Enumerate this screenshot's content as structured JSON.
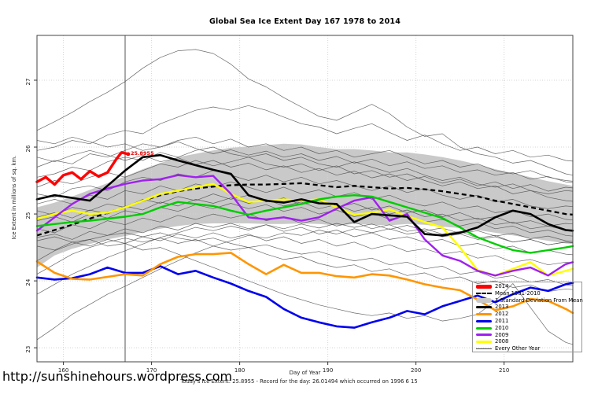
{
  "page": {
    "title": "Global Sea Ice Extent Day 167 1978 to 2014",
    "y_axis_label": "Ice Extent in millions of sq. km.",
    "x_axis_label": "Day of Year",
    "subtitle": "Today's Ice Extent: 25.8955  - Record for the day: 26.01494 which occurred on 1996 6 15",
    "url_text": "http://sunshinehours.wordpress.com",
    "annotation": "25.8955"
  },
  "legend": {
    "items": [
      {
        "label": "2014",
        "color": "#ff0000",
        "swatch": "thick-xl"
      },
      {
        "label": "Mean 1981-2010",
        "color": "#000000",
        "swatch": "dashed"
      },
      {
        "label": "1 Standard Deviation From Mean",
        "color": "#c9c9c9",
        "swatch": "band"
      },
      {
        "label": "2013",
        "color": "#000000",
        "swatch": "thick"
      },
      {
        "label": "2012",
        "color": "#ff9500",
        "swatch": "thick"
      },
      {
        "label": "2011",
        "color": "#0000ee",
        "swatch": "thick"
      },
      {
        "label": "2010",
        "color": "#00cc00",
        "swatch": "thick"
      },
      {
        "label": "2009",
        "color": "#a020f0",
        "swatch": "thick"
      },
      {
        "label": "2008",
        "color": "#ffff00",
        "swatch": "thick"
      },
      {
        "label": "Every Other Year",
        "color": "#4a4a4a",
        "swatch": "thin"
      }
    ]
  },
  "chart_data": {
    "type": "line",
    "title": "Global Sea Ice Extent Day 167 1978 to 2014",
    "xlabel": "Day of Year",
    "ylabel": "Ice Extent in millions of sq. km.",
    "xlim": [
      157,
      217.8
    ],
    "ylim": [
      22.79,
      27.67
    ],
    "xticks": [
      160,
      170,
      180,
      190,
      200,
      210
    ],
    "yticks": [
      23,
      24,
      25,
      26,
      27
    ],
    "grid": true,
    "legend_position": "bottom-right",
    "marker_day": 167,
    "today_extent": 25.8955,
    "record_value": 26.01494,
    "record_date": "1996 6 15",
    "grid_color": "#d4d4d4",
    "border_color": "#444444",
    "marker_color": "#555555",
    "other_color": "#4d4d4d",
    "x": [
      157,
      159,
      161,
      163,
      165,
      167,
      169,
      171,
      173,
      175,
      177,
      179,
      181,
      183,
      185,
      187,
      189,
      191,
      193,
      195,
      197,
      199,
      201,
      203,
      205,
      207,
      209,
      211,
      213,
      215,
      217,
      217.8
    ],
    "band": {
      "name": "1 Standard Deviation From Mean",
      "color": "#c9c9c9",
      "upper": [
        25.1,
        25.17,
        25.26,
        25.36,
        25.46,
        25.56,
        25.67,
        25.76,
        25.85,
        25.9,
        25.95,
        25.99,
        26.01,
        26.03,
        26.05,
        26.04,
        26.0,
        25.97,
        25.97,
        25.95,
        25.92,
        25.92,
        25.89,
        25.85,
        25.8,
        25.74,
        25.67,
        25.61,
        25.55,
        25.49,
        25.44,
        25.42
      ],
      "lower": [
        24.2,
        24.38,
        24.48,
        24.55,
        24.62,
        24.67,
        24.73,
        24.78,
        24.82,
        24.85,
        24.86,
        24.86,
        24.86,
        24.85,
        24.85,
        24.86,
        24.85,
        24.83,
        24.85,
        24.84,
        24.83,
        24.85,
        24.84,
        24.81,
        24.79,
        24.76,
        24.72,
        24.68,
        24.64,
        24.6,
        24.56,
        24.55
      ]
    },
    "mean": {
      "name": "Mean 1981-2010",
      "color": "#000000",
      "values": [
        24.68,
        24.76,
        24.84,
        24.93,
        25.02,
        25.1,
        25.2,
        25.28,
        25.34,
        25.38,
        25.41,
        25.43,
        25.44,
        25.44,
        25.45,
        25.46,
        25.43,
        25.4,
        25.42,
        25.4,
        25.38,
        25.39,
        25.37,
        25.34,
        25.3,
        25.26,
        25.2,
        25.15,
        25.1,
        25.05,
        25.0,
        24.99
      ]
    },
    "series": [
      {
        "name": "2008",
        "color": "#ffff00",
        "width": 2.4,
        "values": [
          24.93,
          25.0,
          25.05,
          25.0,
          25.02,
          25.1,
          25.2,
          25.3,
          25.35,
          25.4,
          25.45,
          25.3,
          25.18,
          25.2,
          25.22,
          25.2,
          25.22,
          25.1,
          24.99,
          25.02,
          25.07,
          24.97,
          24.88,
          24.8,
          24.5,
          24.16,
          24.08,
          24.18,
          24.28,
          24.08,
          24.15,
          24.18
        ]
      },
      {
        "name": "2009",
        "color": "#a020f0",
        "width": 2.4,
        "values": [
          24.75,
          24.95,
          25.15,
          25.3,
          25.38,
          25.45,
          25.5,
          25.52,
          25.58,
          25.55,
          25.57,
          25.3,
          24.95,
          24.92,
          24.95,
          24.9,
          24.95,
          25.08,
          25.2,
          25.25,
          24.9,
          25.0,
          24.62,
          24.38,
          24.3,
          24.15,
          24.08,
          24.15,
          24.2,
          24.08,
          24.25,
          24.28
        ]
      },
      {
        "name": "2010",
        "color": "#00cc00",
        "width": 2.4,
        "values": [
          24.82,
          24.85,
          24.88,
          24.9,
          24.93,
          24.96,
          25.0,
          25.1,
          25.18,
          25.15,
          25.12,
          25.05,
          24.99,
          25.05,
          25.1,
          25.15,
          25.22,
          25.26,
          25.28,
          25.26,
          25.18,
          25.1,
          25.02,
          24.94,
          24.8,
          24.65,
          24.55,
          24.46,
          24.42,
          24.46,
          24.5,
          24.52
        ]
      },
      {
        "name": "2011",
        "color": "#0000ee",
        "width": 2.6,
        "values": [
          24.05,
          24.02,
          24.04,
          24.1,
          24.2,
          24.12,
          24.12,
          24.22,
          24.1,
          24.15,
          24.05,
          23.96,
          23.85,
          23.76,
          23.58,
          23.45,
          23.38,
          23.32,
          23.3,
          23.38,
          23.45,
          23.55,
          23.5,
          23.62,
          23.7,
          23.78,
          23.68,
          23.8,
          23.9,
          23.85,
          23.95,
          23.97
        ]
      },
      {
        "name": "2012",
        "color": "#ff9500",
        "width": 2.6,
        "values": [
          24.29,
          24.12,
          24.03,
          24.02,
          24.06,
          24.1,
          24.08,
          24.25,
          24.36,
          24.4,
          24.4,
          24.42,
          24.25,
          24.1,
          24.24,
          24.12,
          24.12,
          24.07,
          24.05,
          24.1,
          24.08,
          24.02,
          23.95,
          23.9,
          23.86,
          23.72,
          23.56,
          23.62,
          23.73,
          23.7,
          23.58,
          23.52
        ]
      },
      {
        "name": "2013",
        "color": "#000000",
        "width": 2.6,
        "values": [
          25.22,
          25.28,
          25.24,
          25.2,
          25.42,
          25.65,
          25.85,
          25.88,
          25.8,
          25.73,
          25.66,
          25.6,
          25.28,
          25.2,
          25.17,
          25.22,
          25.16,
          25.15,
          24.88,
          25.0,
          24.98,
          24.96,
          24.7,
          24.68,
          24.72,
          24.8,
          24.95,
          25.05,
          25.0,
          24.85,
          24.76,
          24.75
        ]
      }
    ],
    "series2014": {
      "name": "2014",
      "color": "#ff0000",
      "width": 3.4,
      "x": [
        157,
        158,
        159,
        160,
        161,
        162,
        163,
        164,
        165,
        166,
        166.6,
        167.35
      ],
      "values": [
        25.48,
        25.55,
        25.44,
        25.58,
        25.62,
        25.52,
        25.64,
        25.56,
        25.62,
        25.82,
        25.92,
        25.8955
      ]
    },
    "other_years": {
      "name": "Every Other Year",
      "color": "#4d4d4d",
      "lines": [
        [
          26.25,
          26.38,
          26.52,
          26.68,
          26.82,
          26.98,
          27.18,
          27.34,
          27.44,
          27.46,
          27.4,
          27.24,
          27.02,
          26.9,
          26.74,
          26.6,
          26.46,
          26.4,
          26.52,
          26.64,
          26.5,
          26.3,
          26.16,
          26.2,
          26.0,
          25.9,
          25.85,
          25.76,
          25.8,
          25.7,
          25.6,
          25.58
        ],
        [
          25.95,
          26.0,
          26.1,
          26.05,
          26.18,
          26.25,
          26.2,
          26.35,
          26.45,
          26.55,
          26.6,
          26.55,
          26.62,
          26.55,
          26.45,
          26.35,
          26.3,
          26.2,
          26.28,
          26.35,
          26.22,
          26.1,
          26.18,
          26.05,
          25.95,
          26.0,
          25.9,
          25.95,
          25.85,
          25.88,
          25.8,
          25.79
        ],
        [
          25.7,
          25.8,
          25.75,
          25.9,
          25.85,
          25.95,
          26.05,
          26.0,
          26.1,
          26.15,
          26.05,
          26.12,
          26.0,
          26.05,
          25.95,
          26.0,
          25.9,
          25.95,
          25.85,
          25.9,
          25.95,
          25.85,
          25.75,
          25.8,
          25.7,
          25.75,
          25.65,
          25.6,
          25.65,
          25.55,
          25.5,
          25.49
        ],
        [
          25.55,
          25.6,
          25.7,
          25.65,
          25.78,
          25.85,
          25.8,
          25.92,
          25.85,
          25.95,
          26.0,
          25.9,
          25.85,
          25.9,
          25.8,
          25.85,
          25.75,
          25.7,
          25.78,
          25.7,
          25.62,
          25.68,
          25.58,
          25.5,
          25.55,
          25.45,
          25.4,
          25.45,
          25.35,
          25.3,
          25.35,
          25.34
        ],
        [
          25.4,
          25.5,
          25.45,
          25.55,
          25.62,
          25.55,
          25.65,
          25.75,
          25.7,
          25.8,
          25.72,
          25.78,
          25.85,
          25.75,
          25.7,
          25.75,
          25.65,
          25.72,
          25.6,
          25.65,
          25.55,
          25.6,
          25.5,
          25.42,
          25.48,
          25.38,
          25.42,
          25.3,
          25.35,
          25.25,
          25.2,
          25.19
        ],
        [
          25.3,
          25.25,
          25.38,
          25.42,
          25.35,
          25.48,
          25.55,
          25.5,
          25.6,
          25.55,
          25.65,
          25.58,
          25.5,
          25.58,
          25.48,
          25.55,
          25.45,
          25.5,
          25.42,
          25.35,
          25.42,
          25.32,
          25.38,
          25.28,
          25.22,
          25.28,
          25.18,
          25.22,
          25.12,
          25.08,
          25.12,
          25.11
        ],
        [
          25.15,
          25.22,
          25.15,
          25.28,
          25.22,
          25.35,
          25.3,
          25.42,
          25.35,
          25.45,
          25.4,
          25.48,
          25.4,
          25.32,
          25.4,
          25.3,
          25.36,
          25.26,
          25.32,
          25.22,
          25.28,
          25.18,
          25.12,
          25.18,
          25.08,
          25.12,
          25.02,
          25.06,
          24.96,
          25.0,
          24.92,
          24.91
        ],
        [
          25.05,
          24.98,
          25.1,
          25.05,
          25.15,
          25.1,
          25.22,
          25.16,
          25.26,
          25.2,
          25.3,
          25.22,
          25.28,
          25.18,
          25.24,
          25.14,
          25.2,
          25.1,
          25.16,
          25.06,
          25.12,
          25.02,
          25.06,
          24.96,
          25.02,
          24.92,
          24.96,
          24.86,
          24.9,
          24.82,
          24.86,
          24.85
        ],
        [
          24.9,
          24.96,
          24.88,
          25.0,
          24.94,
          25.05,
          25.0,
          25.1,
          25.04,
          25.14,
          25.08,
          25.16,
          25.08,
          25.14,
          25.04,
          25.1,
          25.0,
          25.06,
          24.96,
          25.02,
          24.92,
          24.98,
          24.88,
          24.92,
          24.82,
          24.88,
          24.78,
          24.82,
          24.72,
          24.76,
          24.68,
          24.67
        ],
        [
          24.78,
          24.72,
          24.84,
          24.78,
          24.9,
          24.84,
          24.94,
          24.88,
          24.98,
          24.92,
          25.0,
          24.94,
          25.0,
          24.9,
          24.96,
          24.86,
          24.92,
          24.82,
          24.88,
          24.78,
          24.84,
          24.74,
          24.78,
          24.7,
          24.74,
          24.64,
          24.68,
          24.58,
          24.62,
          24.54,
          24.58,
          24.57
        ],
        [
          24.65,
          24.7,
          24.62,
          24.74,
          24.68,
          24.78,
          24.72,
          24.82,
          24.76,
          24.86,
          24.8,
          24.86,
          24.78,
          24.84,
          24.74,
          24.8,
          24.7,
          24.76,
          24.66,
          24.72,
          24.62,
          24.66,
          24.58,
          24.62,
          24.52,
          24.56,
          24.48,
          24.52,
          24.42,
          24.46,
          24.4,
          24.39
        ],
        [
          24.52,
          24.46,
          24.58,
          24.52,
          24.62,
          24.56,
          24.66,
          24.6,
          24.7,
          24.64,
          24.72,
          24.64,
          24.7,
          24.6,
          24.66,
          24.56,
          24.62,
          24.52,
          24.58,
          24.48,
          24.54,
          24.44,
          24.48,
          24.4,
          24.44,
          24.34,
          24.38,
          24.28,
          24.32,
          24.24,
          24.28,
          24.27
        ],
        [
          24.3,
          24.45,
          24.55,
          24.62,
          24.68,
          24.72,
          24.66,
          24.72,
          24.64,
          24.6,
          24.64,
          24.56,
          24.5,
          24.54,
          24.46,
          24.4,
          24.44,
          24.36,
          24.3,
          24.34,
          24.24,
          24.28,
          24.18,
          24.22,
          24.1,
          24.14,
          24.04,
          24.08,
          23.98,
          24.02,
          23.94,
          23.93
        ],
        [
          24.1,
          24.25,
          24.4,
          24.5,
          24.58,
          24.64,
          24.58,
          24.64,
          24.56,
          24.62,
          24.52,
          24.46,
          24.5,
          24.4,
          24.32,
          24.36,
          24.26,
          24.2,
          24.24,
          24.14,
          24.18,
          24.08,
          24.12,
          24.02,
          24.06,
          23.96,
          24.0,
          23.9,
          23.94,
          23.84,
          23.88,
          23.87
        ],
        [
          23.12,
          23.3,
          23.5,
          23.65,
          23.8,
          23.92,
          24.05,
          24.18,
          24.3,
          24.42,
          24.52,
          24.6,
          24.68,
          24.64,
          24.72,
          24.68,
          24.76,
          24.7,
          24.78,
          24.72,
          24.78,
          24.7,
          24.74,
          24.66,
          24.7,
          24.62,
          24.66,
          24.58,
          24.62,
          24.54,
          24.58,
          24.57
        ],
        [
          23.8,
          23.95,
          24.1,
          24.22,
          24.35,
          24.45,
          24.55,
          24.65,
          24.72,
          24.8,
          24.75,
          24.82,
          24.76,
          24.84,
          24.78,
          24.85,
          24.79,
          24.86,
          24.8,
          24.85,
          24.77,
          24.83,
          24.75,
          24.79,
          24.71,
          24.75,
          24.67,
          24.71,
          24.63,
          24.67,
          24.6,
          24.59
        ],
        [
          24.6,
          24.66,
          24.58,
          24.62,
          24.52,
          24.56,
          24.46,
          24.5,
          24.4,
          24.3,
          24.2,
          24.1,
          24.0,
          23.9,
          23.8,
          23.72,
          23.64,
          23.58,
          23.52,
          23.48,
          23.52,
          23.44,
          23.48,
          23.4,
          23.44,
          23.5,
          23.7,
          23.96,
          23.6,
          23.25,
          23.08,
          23.05
        ],
        [
          26.1,
          26.05,
          26.15,
          26.08,
          26.0,
          26.05,
          25.95,
          26.0,
          26.08,
          25.98,
          25.9,
          25.96,
          25.88,
          25.94,
          25.85,
          25.9,
          25.8,
          25.86,
          25.76,
          25.82,
          25.72,
          25.78,
          25.68,
          25.72,
          25.62,
          25.66,
          25.58,
          25.62,
          25.52,
          25.56,
          25.48,
          25.47
        ],
        [
          25.85,
          25.78,
          25.88,
          25.95,
          25.88,
          25.8,
          25.88,
          25.78,
          25.84,
          25.74,
          25.8,
          25.7,
          25.76,
          25.66,
          25.72,
          25.62,
          25.68,
          25.58,
          25.64,
          25.54,
          25.6,
          25.5,
          25.56,
          25.46,
          25.52,
          25.42,
          25.48,
          25.38,
          25.44,
          25.34,
          25.4,
          25.39
        ],
        [
          24.95,
          25.02,
          24.94,
          25.06,
          25.0,
          25.12,
          25.06,
          25.18,
          25.12,
          25.22,
          25.16,
          25.24,
          25.16,
          25.22,
          25.12,
          25.18,
          25.08,
          25.14,
          25.04,
          25.1,
          25.0,
          25.06,
          24.96,
          25.0,
          24.9,
          24.94,
          24.84,
          24.88,
          24.78,
          24.82,
          24.76,
          24.75
        ]
      ]
    }
  }
}
